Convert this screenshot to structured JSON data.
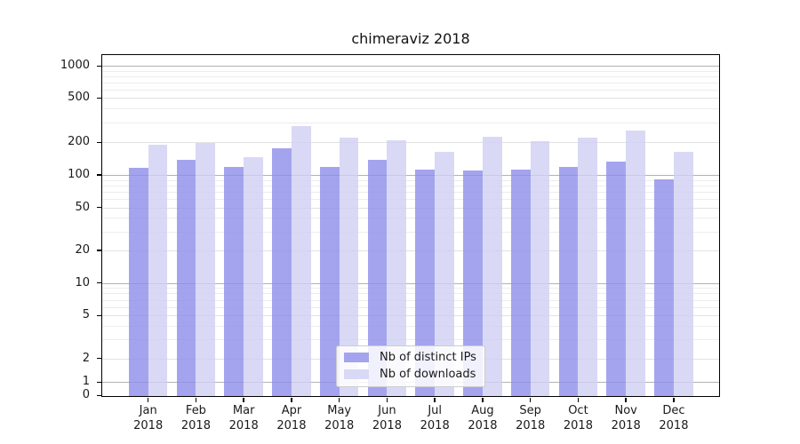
{
  "title": "chimeraviz 2018",
  "chart_data": {
    "type": "bar",
    "title": "chimeraviz 2018",
    "yscale": "symlog",
    "grid": "on",
    "ylim": [
      0,
      1200
    ],
    "ytick_labels": [
      "0",
      "1",
      "2",
      "5",
      "10",
      "20",
      "50",
      "100",
      "200",
      "500",
      "1000"
    ],
    "ytick_values": [
      0,
      1,
      2,
      5,
      10,
      20,
      50,
      100,
      200,
      500,
      1000
    ],
    "months": [
      "Jan",
      "Feb",
      "Mar",
      "Apr",
      "May",
      "Jun",
      "Jul",
      "Aug",
      "Sep",
      "Oct",
      "Nov",
      "Dec"
    ],
    "year": "2018",
    "categories": [
      "Jan 2018",
      "Feb 2018",
      "Mar 2018",
      "Apr 2018",
      "May 2018",
      "Jun 2018",
      "Jul 2018",
      "Aug 2018",
      "Sep 2018",
      "Oct 2018",
      "Nov 2018",
      "Dec 2018"
    ],
    "series": [
      {
        "name": "Nb of distinct IPs",
        "color": "#a4a4ee",
        "fill": "rgba(141,141,234,0.8)",
        "values": [
          116,
          137,
          119,
          175,
          118,
          137,
          112,
          110,
          112,
          119,
          134,
          91
        ]
      },
      {
        "name": "Nb of downloads",
        "color": "#d9d9f6",
        "fill": "rgba(208,208,244,0.8)",
        "values": [
          191,
          196,
          147,
          279,
          220,
          210,
          164,
          224,
          204,
          220,
          253,
          164
        ]
      }
    ],
    "legend_position": "lower-center"
  }
}
